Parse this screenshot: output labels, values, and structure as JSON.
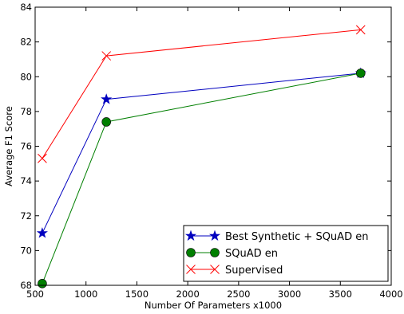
{
  "chart_data": {
    "type": "line",
    "title": "",
    "xlabel": "Number Of Parameters x1000",
    "ylabel": "Average F1 Score",
    "xlim": [
      500,
      4000
    ],
    "ylim": [
      68,
      84
    ],
    "xticks": [
      500,
      1000,
      1500,
      2000,
      2500,
      3000,
      3500,
      4000
    ],
    "yticks": [
      68,
      70,
      72,
      74,
      76,
      78,
      80,
      82,
      84
    ],
    "grid": false,
    "legend_position": "bottom-right",
    "series": [
      {
        "name": "Best Synthetic + SQuAD en",
        "color": "#0000bf",
        "marker": "star",
        "x": [
          570,
          1200,
          3700
        ],
        "y": [
          71.0,
          78.7,
          80.2
        ]
      },
      {
        "name": "SQuAD en",
        "color": "#007f00",
        "marker": "circle",
        "x": [
          570,
          1200,
          3700
        ],
        "y": [
          68.1,
          77.4,
          80.2
        ]
      },
      {
        "name": "Supervised",
        "color": "#ff0000",
        "marker": "x",
        "x": [
          570,
          1200,
          3700
        ],
        "y": [
          75.3,
          81.2,
          82.7
        ]
      }
    ]
  }
}
